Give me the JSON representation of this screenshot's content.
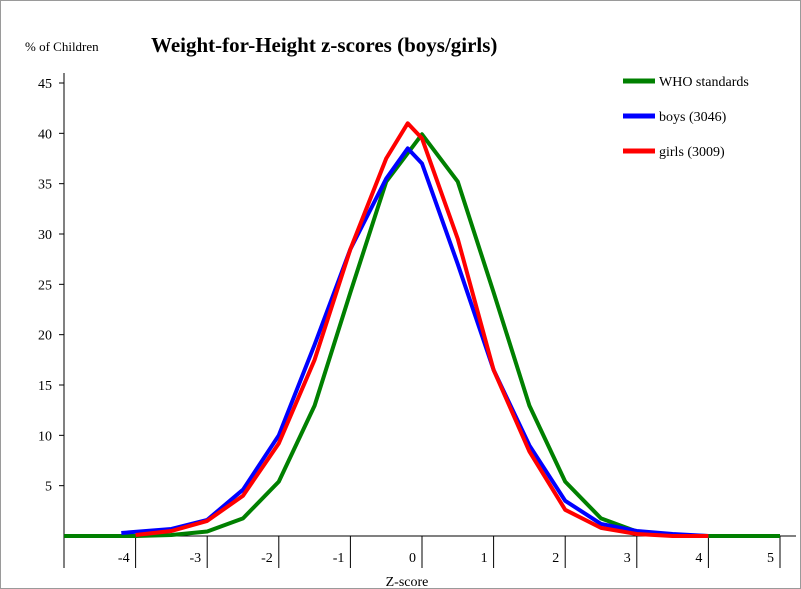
{
  "chart_data": {
    "type": "line",
    "title": "Weight-for-Height z-scores (boys/girls)",
    "ylabel": "% of Children",
    "xlabel": "Z-score",
    "xlim": [
      -5,
      5
    ],
    "ylim": [
      0,
      45
    ],
    "xticks": [
      -4,
      -3,
      -2,
      -1,
      0,
      1,
      2,
      3,
      4,
      5
    ],
    "yticks": [
      5,
      10,
      15,
      20,
      25,
      30,
      35,
      40,
      45
    ],
    "grid": false,
    "legend_position": "top-right",
    "series": [
      {
        "name": "WHO standards",
        "color": "#008000",
        "points": [
          [
            -5,
            0
          ],
          [
            -4,
            0
          ],
          [
            -3.5,
            0.1
          ],
          [
            -3,
            0.45
          ],
          [
            -2.5,
            1.75
          ],
          [
            -2,
            5.4
          ],
          [
            -1.5,
            12.95
          ],
          [
            -1,
            24.2
          ],
          [
            -0.5,
            35.2
          ],
          [
            0,
            39.9
          ],
          [
            0.5,
            35.2
          ],
          [
            1,
            24.2
          ],
          [
            1.5,
            12.95
          ],
          [
            2,
            5.4
          ],
          [
            2.5,
            1.75
          ],
          [
            3,
            0.45
          ],
          [
            3.5,
            0.1
          ],
          [
            4,
            0
          ],
          [
            5,
            0
          ]
        ]
      },
      {
        "name": "boys (3046)",
        "color": "#0000ff",
        "points": [
          [
            -4.2,
            0.3
          ],
          [
            -3.5,
            0.7
          ],
          [
            -3,
            1.6
          ],
          [
            -2.5,
            4.6
          ],
          [
            -2,
            10
          ],
          [
            -1.5,
            19
          ],
          [
            -1,
            28.5
          ],
          [
            -0.5,
            35.5
          ],
          [
            -0.2,
            38.5
          ],
          [
            0,
            37
          ],
          [
            0.5,
            27
          ],
          [
            1,
            16.5
          ],
          [
            1.5,
            9
          ],
          [
            2,
            3.5
          ],
          [
            2.5,
            1.2
          ],
          [
            3,
            0.5
          ],
          [
            3.5,
            0.2
          ],
          [
            4,
            0
          ]
        ]
      },
      {
        "name": "girls (3009)",
        "color": "#ff0000",
        "points": [
          [
            -4,
            0.1
          ],
          [
            -3.5,
            0.5
          ],
          [
            -3,
            1.5
          ],
          [
            -2.5,
            4
          ],
          [
            -2,
            9.2
          ],
          [
            -1.5,
            17.5
          ],
          [
            -1,
            28.5
          ],
          [
            -0.5,
            37.5
          ],
          [
            -0.2,
            41
          ],
          [
            0,
            39.5
          ],
          [
            0.5,
            29.5
          ],
          [
            1,
            16.5
          ],
          [
            1.5,
            8.4
          ],
          [
            2,
            2.6
          ],
          [
            2.5,
            0.8
          ],
          [
            3,
            0.2
          ],
          [
            3.5,
            0
          ],
          [
            4,
            0
          ]
        ]
      }
    ]
  }
}
